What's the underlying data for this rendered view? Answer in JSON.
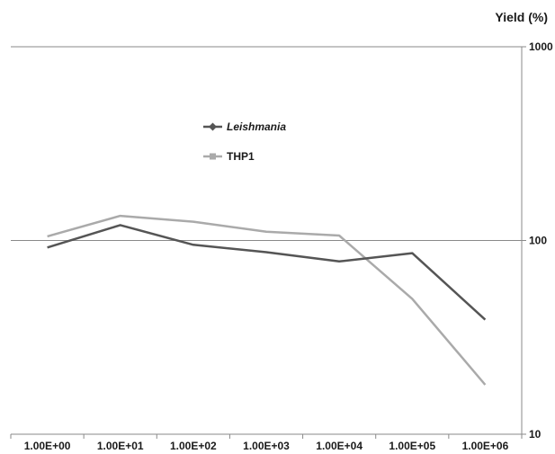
{
  "chart_data": {
    "type": "line",
    "ylabel": "Yield (%)",
    "yscale": "log",
    "ylim": [
      10,
      1000
    ],
    "yticks": [
      "1000",
      "100",
      "10"
    ],
    "gridlines": "major y only",
    "y_axis_side": "right",
    "categories": [
      "1.00E+00",
      "1.00E+01",
      "1.00E+02",
      "1.00E+03",
      "1.00E+04",
      "1.00E+05",
      "1.00E+06"
    ],
    "legend_position": "upper-center",
    "series": [
      {
        "name": "Leishmania",
        "italic": true,
        "color": "#555555",
        "marker": "diamond",
        "values": [
          92,
          120,
          95,
          87,
          78,
          86,
          39
        ]
      },
      {
        "name": "THP1",
        "italic": false,
        "color": "#aaaaaa",
        "marker": "square",
        "values": [
          105,
          134,
          125,
          111,
          106,
          50,
          18
        ]
      }
    ]
  }
}
